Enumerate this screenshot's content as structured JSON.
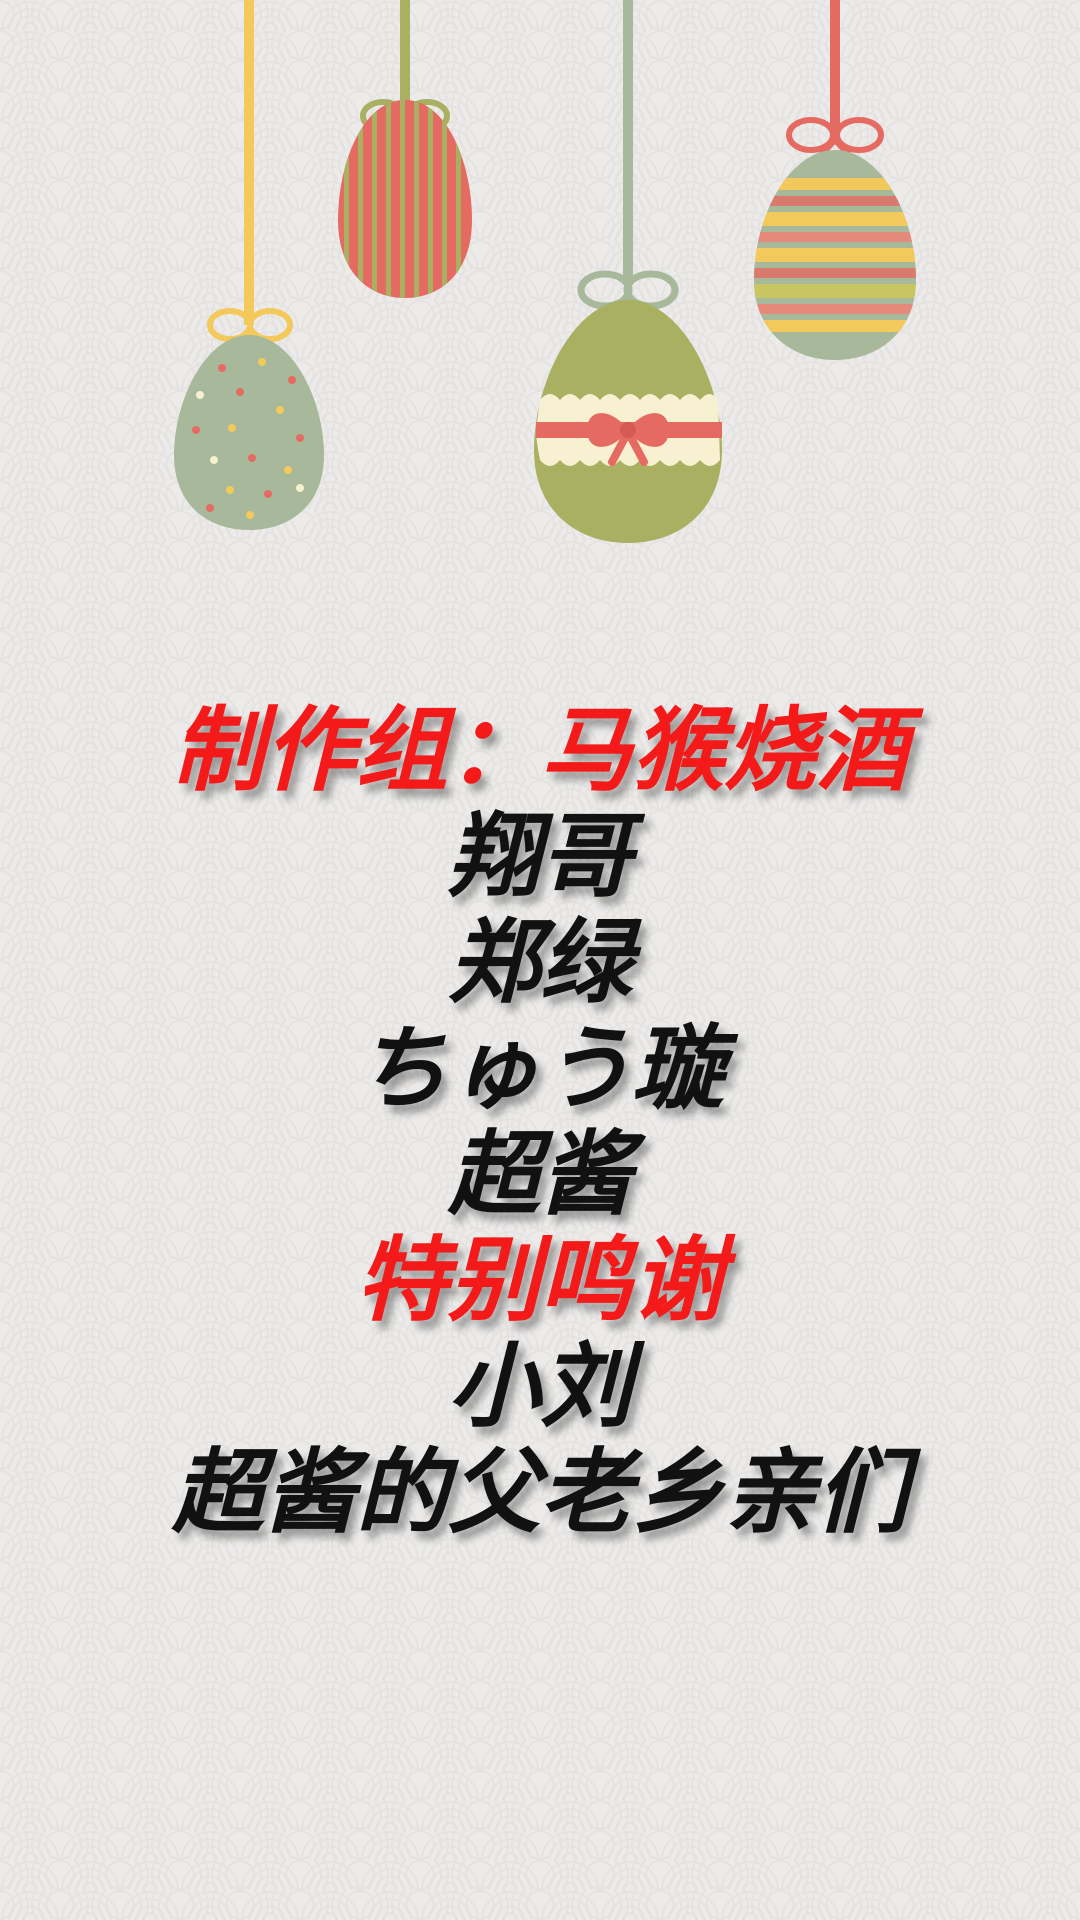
{
  "colors": {
    "background": "#ecebea",
    "heading_red": "#f41a1a",
    "text_black": "#111111",
    "egg_sage": "#a7b89b",
    "egg_olive": "#a9b061",
    "egg_coral": "#e56b62",
    "egg_yellow": "#f4c95c",
    "ribbon_cream": "#f7f1d2"
  },
  "decorations": {
    "eggs": [
      {
        "name": "polka-dot-egg",
        "icon": "easter-egg-icon"
      },
      {
        "name": "vertical-striped-egg",
        "icon": "easter-egg-icon"
      },
      {
        "name": "ribbon-bow-egg",
        "icon": "easter-egg-icon"
      },
      {
        "name": "horizontal-striped-egg",
        "icon": "easter-egg-icon"
      }
    ]
  },
  "credits": {
    "production_heading": "制作组：马猴烧酒",
    "members": [
      "翔哥",
      "郑绿",
      "ちゅう璇",
      "超酱"
    ],
    "thanks_heading": "特别鸣谢",
    "thanks": [
      "小刘",
      "超酱的父老乡亲们"
    ]
  }
}
